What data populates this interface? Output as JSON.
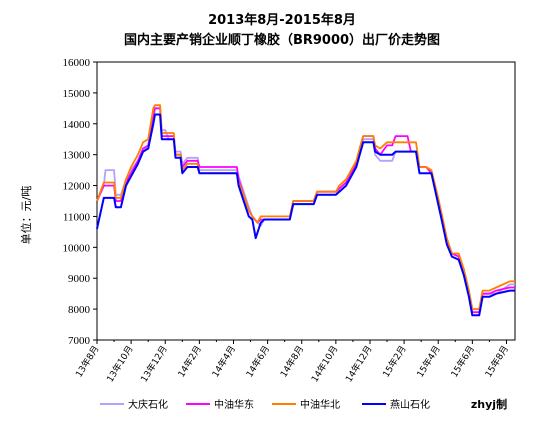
{
  "chart_data": {
    "type": "line",
    "title": "2013年8月-2015年8月",
    "subtitle": "国内主要产销企业顺丁橡胶（BR9000）出厂价走势图",
    "ylabel": "单位：元/吨",
    "xlabel": "",
    "ylim": [
      7000,
      16000
    ],
    "yticks": [
      7000,
      8000,
      9000,
      10000,
      11000,
      12000,
      13000,
      14000,
      15000,
      16000
    ],
    "xlim": [
      0,
      24.5
    ],
    "x_tick_labels": [
      "13年8月",
      "13年10月",
      "13年12月",
      "14年2月",
      "14年4月",
      "14年6月",
      "14年8月",
      "14年10月",
      "14年12月",
      "15年2月",
      "15年4月",
      "15年6月",
      "15年8月"
    ],
    "grid": false,
    "legend_position": "bottom",
    "credit": "zhyj制",
    "series": [
      {
        "name": "大庆石化",
        "color": "#b4a0ff",
        "points": [
          [
            0,
            11500
          ],
          [
            0.4,
            12000
          ],
          [
            0.5,
            12500
          ],
          [
            1.0,
            12500
          ],
          [
            1.1,
            11700
          ],
          [
            1.4,
            11700
          ],
          [
            1.7,
            12200
          ],
          [
            2.0,
            12500
          ],
          [
            2.4,
            12800
          ],
          [
            2.7,
            13200
          ],
          [
            3.0,
            13200
          ],
          [
            3.3,
            14000
          ],
          [
            3.4,
            14500
          ],
          [
            3.7,
            14500
          ],
          [
            3.8,
            13800
          ],
          [
            4.0,
            13800
          ],
          [
            4.2,
            13500
          ],
          [
            4.5,
            13500
          ],
          [
            4.6,
            13100
          ],
          [
            4.9,
            13100
          ],
          [
            5.0,
            12700
          ],
          [
            5.3,
            12900
          ],
          [
            5.9,
            12900
          ],
          [
            6.0,
            12500
          ],
          [
            8.2,
            12500
          ],
          [
            8.3,
            12300
          ],
          [
            8.6,
            11800
          ],
          [
            8.9,
            11300
          ],
          [
            9.1,
            11000
          ],
          [
            9.4,
            10800
          ],
          [
            9.6,
            10700
          ],
          [
            9.8,
            10900
          ],
          [
            11.3,
            10900
          ],
          [
            11.5,
            11400
          ],
          [
            12.7,
            11400
          ],
          [
            12.9,
            11700
          ],
          [
            14.0,
            11700
          ],
          [
            14.2,
            11900
          ],
          [
            14.6,
            12100
          ],
          [
            14.9,
            12400
          ],
          [
            15.2,
            12700
          ],
          [
            15.4,
            13100
          ],
          [
            15.6,
            13500
          ],
          [
            16.2,
            13500
          ],
          [
            16.3,
            13000
          ],
          [
            16.6,
            12800
          ],
          [
            17.3,
            12800
          ],
          [
            17.5,
            13100
          ],
          [
            18.7,
            13100
          ],
          [
            18.9,
            12600
          ],
          [
            19.3,
            12600
          ],
          [
            19.6,
            12400
          ],
          [
            20.0,
            11500
          ],
          [
            20.2,
            11000
          ],
          [
            20.5,
            10200
          ],
          [
            20.8,
            9800
          ],
          [
            21.2,
            9700
          ],
          [
            21.5,
            9300
          ],
          [
            21.8,
            8600
          ],
          [
            22.0,
            8000
          ],
          [
            22.4,
            8000
          ],
          [
            22.6,
            8500
          ],
          [
            23.0,
            8500
          ],
          [
            23.4,
            8500
          ],
          [
            24.2,
            8800
          ],
          [
            24.5,
            8800
          ]
        ],
        "x_note": "time index, one unit per month from Aug 2013"
      },
      {
        "name": "中油华东",
        "color": "#ff00ff",
        "points": [
          [
            0,
            11500
          ],
          [
            0.4,
            12000
          ],
          [
            1.0,
            12000
          ],
          [
            1.1,
            11500
          ],
          [
            1.4,
            11500
          ],
          [
            1.7,
            12100
          ],
          [
            2.0,
            12400
          ],
          [
            2.4,
            12800
          ],
          [
            2.7,
            13200
          ],
          [
            3.0,
            13300
          ],
          [
            3.3,
            14300
          ],
          [
            3.4,
            14500
          ],
          [
            3.7,
            14500
          ],
          [
            3.8,
            13600
          ],
          [
            4.0,
            13600
          ],
          [
            4.2,
            13600
          ],
          [
            4.5,
            13600
          ],
          [
            4.6,
            13000
          ],
          [
            4.9,
            13000
          ],
          [
            5.0,
            12600
          ],
          [
            5.3,
            12800
          ],
          [
            5.9,
            12800
          ],
          [
            6.0,
            12600
          ],
          [
            8.2,
            12600
          ],
          [
            8.3,
            12200
          ],
          [
            8.6,
            11700
          ],
          [
            8.9,
            11200
          ],
          [
            9.1,
            11000
          ],
          [
            9.4,
            10800
          ],
          [
            9.6,
            10900
          ],
          [
            9.8,
            10900
          ],
          [
            11.3,
            10900
          ],
          [
            11.5,
            11500
          ],
          [
            12.7,
            11500
          ],
          [
            12.9,
            11800
          ],
          [
            14.0,
            11800
          ],
          [
            14.2,
            11900
          ],
          [
            14.6,
            12100
          ],
          [
            14.9,
            12400
          ],
          [
            15.2,
            12700
          ],
          [
            15.4,
            13200
          ],
          [
            15.6,
            13600
          ],
          [
            16.2,
            13600
          ],
          [
            16.3,
            13200
          ],
          [
            16.6,
            13000
          ],
          [
            17.0,
            13300
          ],
          [
            17.3,
            13300
          ],
          [
            17.5,
            13600
          ],
          [
            18.2,
            13600
          ],
          [
            18.4,
            13100
          ],
          [
            18.7,
            13100
          ],
          [
            18.9,
            12600
          ],
          [
            19.3,
            12600
          ],
          [
            19.6,
            12400
          ],
          [
            20.0,
            11500
          ],
          [
            20.2,
            11000
          ],
          [
            20.5,
            10200
          ],
          [
            20.8,
            9800
          ],
          [
            21.2,
            9700
          ],
          [
            21.5,
            9200
          ],
          [
            21.8,
            8500
          ],
          [
            22.0,
            7900
          ],
          [
            22.4,
            7900
          ],
          [
            22.6,
            8500
          ],
          [
            23.0,
            8500
          ],
          [
            23.4,
            8600
          ],
          [
            24.2,
            8700
          ],
          [
            24.5,
            8700
          ]
        ],
        "x_note": "time index, one unit per month from Aug 2013"
      },
      {
        "name": "中油华北",
        "color": "#ff7f00",
        "points": [
          [
            0,
            11500
          ],
          [
            0.4,
            12100
          ],
          [
            1.0,
            12100
          ],
          [
            1.1,
            11600
          ],
          [
            1.4,
            11600
          ],
          [
            1.7,
            12200
          ],
          [
            2.0,
            12600
          ],
          [
            2.4,
            13000
          ],
          [
            2.7,
            13400
          ],
          [
            3.0,
            13500
          ],
          [
            3.3,
            14500
          ],
          [
            3.4,
            14600
          ],
          [
            3.7,
            14600
          ],
          [
            3.8,
            13700
          ],
          [
            4.0,
            13700
          ],
          [
            4.2,
            13700
          ],
          [
            4.5,
            13700
          ],
          [
            4.6,
            13000
          ],
          [
            4.9,
            13000
          ],
          [
            5.0,
            12500
          ],
          [
            5.3,
            12700
          ],
          [
            5.9,
            12700
          ],
          [
            6.0,
            12400
          ],
          [
            8.2,
            12400
          ],
          [
            8.3,
            12100
          ],
          [
            8.6,
            11700
          ],
          [
            8.9,
            11200
          ],
          [
            9.1,
            11000
          ],
          [
            9.4,
            10800
          ],
          [
            9.6,
            11000
          ],
          [
            9.8,
            11000
          ],
          [
            11.3,
            11000
          ],
          [
            11.5,
            11500
          ],
          [
            12.7,
            11500
          ],
          [
            12.9,
            11800
          ],
          [
            14.0,
            11800
          ],
          [
            14.2,
            12000
          ],
          [
            14.6,
            12200
          ],
          [
            14.9,
            12500
          ],
          [
            15.2,
            12800
          ],
          [
            15.4,
            13200
          ],
          [
            15.6,
            13600
          ],
          [
            16.2,
            13600
          ],
          [
            16.3,
            13300
          ],
          [
            16.6,
            13200
          ],
          [
            17.0,
            13400
          ],
          [
            17.3,
            13400
          ],
          [
            17.5,
            13400
          ],
          [
            18.7,
            13400
          ],
          [
            18.9,
            12600
          ],
          [
            19.3,
            12600
          ],
          [
            19.6,
            12500
          ],
          [
            20.0,
            11600
          ],
          [
            20.2,
            11100
          ],
          [
            20.5,
            10300
          ],
          [
            20.8,
            9800
          ],
          [
            21.2,
            9800
          ],
          [
            21.5,
            9300
          ],
          [
            21.8,
            8600
          ],
          [
            22.0,
            8000
          ],
          [
            22.4,
            8000
          ],
          [
            22.6,
            8600
          ],
          [
            23.0,
            8600
          ],
          [
            23.4,
            8700
          ],
          [
            24.2,
            8900
          ],
          [
            24.5,
            8900
          ]
        ],
        "x_note": "time index, one unit per month from Aug 2013"
      },
      {
        "name": "燕山石化",
        "color": "#0000ff",
        "points": [
          [
            0,
            10600
          ],
          [
            0.4,
            11600
          ],
          [
            1.0,
            11600
          ],
          [
            1.1,
            11300
          ],
          [
            1.4,
            11300
          ],
          [
            1.7,
            12000
          ],
          [
            2.0,
            12300
          ],
          [
            2.4,
            12700
          ],
          [
            2.7,
            13100
          ],
          [
            3.0,
            13200
          ],
          [
            3.3,
            14000
          ],
          [
            3.4,
            14300
          ],
          [
            3.7,
            14300
          ],
          [
            3.8,
            13500
          ],
          [
            4.0,
            13500
          ],
          [
            4.2,
            13500
          ],
          [
            4.5,
            13500
          ],
          [
            4.6,
            12900
          ],
          [
            4.9,
            12900
          ],
          [
            5.0,
            12400
          ],
          [
            5.3,
            12600
          ],
          [
            5.9,
            12600
          ],
          [
            6.0,
            12400
          ],
          [
            8.2,
            12400
          ],
          [
            8.3,
            12000
          ],
          [
            8.6,
            11500
          ],
          [
            8.9,
            11000
          ],
          [
            9.1,
            10900
          ],
          [
            9.3,
            10300
          ],
          [
            9.6,
            10800
          ],
          [
            9.8,
            10900
          ],
          [
            11.3,
            10900
          ],
          [
            11.5,
            11400
          ],
          [
            12.7,
            11400
          ],
          [
            12.9,
            11700
          ],
          [
            14.0,
            11700
          ],
          [
            14.2,
            11800
          ],
          [
            14.6,
            12000
          ],
          [
            14.9,
            12300
          ],
          [
            15.2,
            12600
          ],
          [
            15.4,
            13000
          ],
          [
            15.6,
            13400
          ],
          [
            16.2,
            13400
          ],
          [
            16.3,
            13100
          ],
          [
            16.6,
            13000
          ],
          [
            17.3,
            13000
          ],
          [
            17.5,
            13100
          ],
          [
            18.7,
            13100
          ],
          [
            18.9,
            12400
          ],
          [
            19.3,
            12400
          ],
          [
            19.6,
            12400
          ],
          [
            20.0,
            11400
          ],
          [
            20.2,
            10900
          ],
          [
            20.5,
            10100
          ],
          [
            20.8,
            9700
          ],
          [
            21.2,
            9600
          ],
          [
            21.5,
            9100
          ],
          [
            21.8,
            8400
          ],
          [
            22.0,
            7800
          ],
          [
            22.4,
            7800
          ],
          [
            22.6,
            8400
          ],
          [
            23.0,
            8400
          ],
          [
            23.4,
            8500
          ],
          [
            24.2,
            8600
          ],
          [
            24.5,
            8600
          ]
        ],
        "x_note": "time index, one unit per month from Aug 2013"
      }
    ]
  }
}
